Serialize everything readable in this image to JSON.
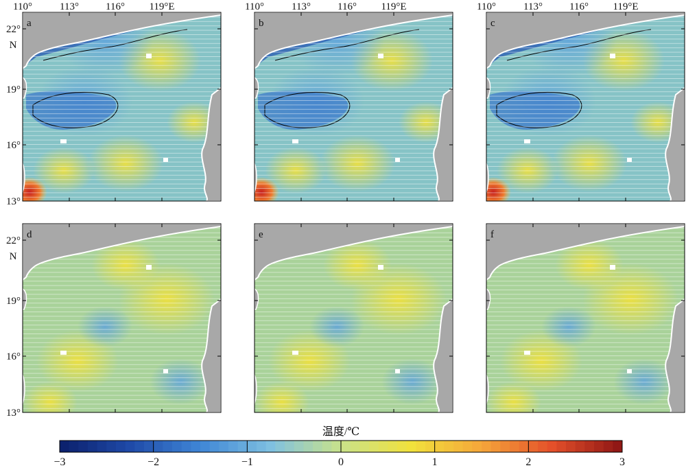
{
  "longitude_ticks": [
    "110°",
    "113°",
    "116°",
    "119°E"
  ],
  "latitude_ticks": [
    "22°",
    "19°",
    "16°",
    "13°"
  ],
  "latitude_unit": "N",
  "panels": [
    {
      "label": "a",
      "row": 0,
      "col": 0
    },
    {
      "label": "b",
      "row": 0,
      "col": 1
    },
    {
      "label": "c",
      "row": 0,
      "col": 2
    },
    {
      "label": "d",
      "row": 1,
      "col": 0
    },
    {
      "label": "e",
      "row": 1,
      "col": 1
    },
    {
      "label": "f",
      "row": 1,
      "col": 2
    }
  ],
  "colorbar": {
    "title": "温度/℃",
    "min": -3,
    "max": 3,
    "tick_labels": [
      "−3",
      "−2",
      "−1",
      "0",
      "1",
      "2",
      "3"
    ],
    "colors": [
      "#0b1f6b",
      "#1f4aa8",
      "#3f86d6",
      "#7fc0e0",
      "#c9e28a",
      "#f1e13c",
      "#f5a63a",
      "#e4502a",
      "#8b1414"
    ]
  },
  "colors": {
    "land": "#a8a8a8",
    "coast": "#ffffff",
    "contour": "#000000",
    "background_field": "#8fc6b6"
  }
}
